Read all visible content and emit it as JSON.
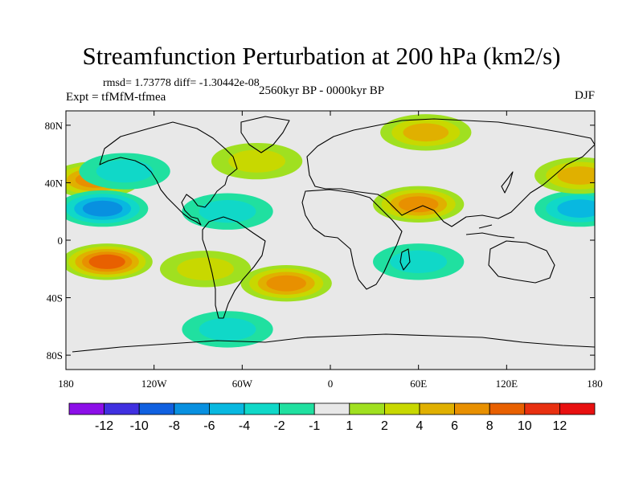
{
  "chart_data": {
    "type": "heatmap",
    "subtype": "global-contour-map",
    "title": "Streamfunction Perturbation at 200 hPa (km2/s)",
    "stats_line": "rmsd= 1.73778 diff= -1.30442e-08",
    "experiment_line": "Expt = tfMfM-tfmea",
    "period_line": "2560kyr BP - 0000kyr BP",
    "season_label": "DJF",
    "x_ticks": [
      "180",
      "120W",
      "60W",
      "0",
      "60E",
      "120E",
      "180"
    ],
    "x_tick_values": [
      -180,
      -120,
      -60,
      0,
      60,
      120,
      180
    ],
    "y_ticks": [
      "80N",
      "40N",
      "0",
      "40S",
      "80S"
    ],
    "y_tick_values": [
      80,
      40,
      0,
      -40,
      -80
    ],
    "xlim": [
      -180,
      180
    ],
    "ylim": [
      -90,
      90
    ],
    "colorbar_levels": [
      -12,
      -10,
      -8,
      -6,
      -4,
      -2,
      -1,
      1,
      2,
      4,
      6,
      8,
      10,
      12
    ],
    "colorbar_labels": [
      "-12",
      "-10",
      "-8",
      "-6",
      "-4",
      "-2",
      "-1",
      "1",
      "2",
      "4",
      "6",
      "8",
      "10",
      "12"
    ],
    "colorbar_colors": [
      "#8c0fe8",
      "#4030e0",
      "#1060e0",
      "#0890e0",
      "#08b8e0",
      "#10d8c8",
      "#20e0a0",
      "#e8e8e8",
      "#a0e020",
      "#c8d800",
      "#e0b000",
      "#e89000",
      "#e86000",
      "#e83010",
      "#e81010"
    ],
    "features": [
      {
        "name": "pos-n-atlantic",
        "lon": -50,
        "lat": 55,
        "value": 2
      },
      {
        "name": "pos-n-pacific-east",
        "lon": -160,
        "lat": 42,
        "value": 6
      },
      {
        "name": "neg-ne-pacific",
        "lon": -140,
        "lat": 48,
        "value": -2
      },
      {
        "name": "neg-e-pacific",
        "lon": -155,
        "lat": 22,
        "value": -6
      },
      {
        "name": "neg-caribbean",
        "lon": -70,
        "lat": 20,
        "value": -2
      },
      {
        "name": "pos-s-pacific",
        "lon": -152,
        "lat": -15,
        "value": 8
      },
      {
        "name": "pos-s-atlantic",
        "lon": -30,
        "lat": -30,
        "value": 6
      },
      {
        "name": "pos-s-atlantic-west",
        "lon": -85,
        "lat": -20,
        "value": 2
      },
      {
        "name": "pos-arctic-siberia",
        "lon": 65,
        "lat": 75,
        "value": 4
      },
      {
        "name": "pos-asia-belt",
        "lon": 60,
        "lat": 25,
        "value": 6
      },
      {
        "name": "neg-indian-ocean",
        "lon": 60,
        "lat": -15,
        "value": -2
      },
      {
        "name": "neg-w-pacific",
        "lon": 170,
        "lat": 22,
        "value": -4
      },
      {
        "name": "pos-nw-pacific",
        "lon": 170,
        "lat": 45,
        "value": 4
      },
      {
        "name": "neg-southern-ocean",
        "lon": -70,
        "lat": -62,
        "value": -2
      }
    ]
  }
}
